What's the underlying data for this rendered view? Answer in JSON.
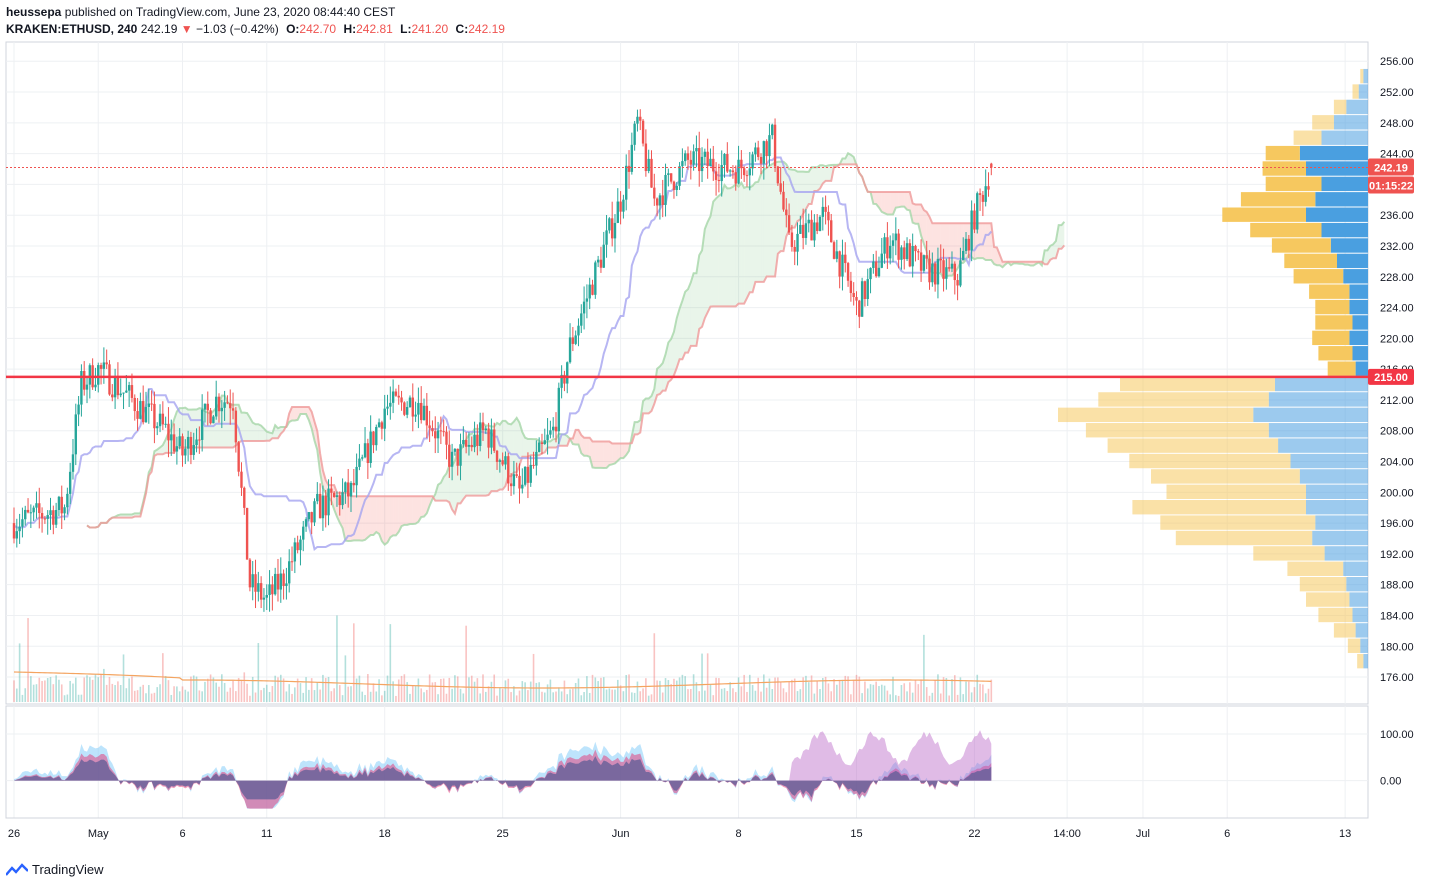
{
  "header": {
    "publisher": "heussepa",
    "published_on": "published on TradingView.com, June 23, 2020 08:44:40 CEST",
    "symbol": "KRAKEN:ETHUSD, 240",
    "last": "242.19",
    "change": "−1.03 (−0.42%)",
    "o_label": "O:",
    "o": "242.70",
    "h_label": "H:",
    "h": "242.81",
    "l_label": "L:",
    "l": "241.20",
    "c_label": "C:",
    "c": "242.19"
  },
  "footer": {
    "brand": "TradingView"
  },
  "colors": {
    "up": "#26a69a",
    "down": "#ef5350",
    "grid": "#eef0f3",
    "baseline": "#26a69a",
    "hline": "#f23645",
    "kijun": "#a5a4f0",
    "cloud_green": "#c8e6c9",
    "cloud_red": "#ffcdd2",
    "vp_blue": "#4a9fe0",
    "vp_yellow": "#f6c85f"
  },
  "chart_data": {
    "type": "candlestick",
    "title": "",
    "price_axis": {
      "ticks": [
        "256.00",
        "252.00",
        "248.00",
        "244.00",
        "240.00",
        "236.00",
        "232.00",
        "228.00",
        "224.00",
        "220.00",
        "216.00",
        "212.00",
        "208.00",
        "204.00",
        "200.00",
        "196.00",
        "192.00",
        "188.00",
        "184.00",
        "180.00",
        "176.00"
      ],
      "ylim": [
        172.5,
        258.5
      ]
    },
    "time_axis": {
      "ticks": [
        "26",
        "May",
        "6",
        "11",
        "18",
        "25",
        "Jun",
        "8",
        "15",
        "22",
        "14:00",
        "Jul",
        "6",
        "13"
      ]
    },
    "last_price_label": "242.19",
    "countdown_label": "01:15:22",
    "horizontal_line": {
      "price": 215.0,
      "label": "215.00"
    },
    "ohlc_summary": {
      "open": 242.7,
      "high": 242.81,
      "low": 241.2,
      "close": 242.19
    },
    "price_path_anchors": [
      {
        "date": "Apr 26",
        "price": 196
      },
      {
        "date": "Apr 29",
        "price": 198
      },
      {
        "date": "Apr 30",
        "price": 214
      },
      {
        "date": "May 1",
        "price": 216
      },
      {
        "date": "May 3",
        "price": 212
      },
      {
        "date": "May 5",
        "price": 208
      },
      {
        "date": "May 6",
        "price": 205
      },
      {
        "date": "May 8",
        "price": 212
      },
      {
        "date": "May 9",
        "price": 212
      },
      {
        "date": "May 10",
        "price": 188
      },
      {
        "date": "May 11",
        "price": 186
      },
      {
        "date": "May 12",
        "price": 189
      },
      {
        "date": "May 14",
        "price": 198
      },
      {
        "date": "May 16",
        "price": 200
      },
      {
        "date": "May 18",
        "price": 211
      },
      {
        "date": "May 20",
        "price": 212
      },
      {
        "date": "May 22",
        "price": 204
      },
      {
        "date": "May 24",
        "price": 208
      },
      {
        "date": "May 26",
        "price": 200
      },
      {
        "date": "May 28",
        "price": 208
      },
      {
        "date": "May 29",
        "price": 219
      },
      {
        "date": "Jun 1",
        "price": 238
      },
      {
        "date": "Jun 2",
        "price": 248
      },
      {
        "date": "Jun 3",
        "price": 238
      },
      {
        "date": "Jun 5",
        "price": 243
      },
      {
        "date": "Jun 8",
        "price": 242
      },
      {
        "date": "Jun 10",
        "price": 246
      },
      {
        "date": "Jun 11",
        "price": 232
      },
      {
        "date": "Jun 13",
        "price": 236
      },
      {
        "date": "Jun 15",
        "price": 224
      },
      {
        "date": "Jun 17",
        "price": 233
      },
      {
        "date": "Jun 19",
        "price": 229
      },
      {
        "date": "Jun 21",
        "price": 228
      },
      {
        "date": "Jun 22",
        "price": 236
      },
      {
        "date": "Jun 23",
        "price": 242.19
      }
    ],
    "volume_profile": [
      {
        "price": 254,
        "up": 2,
        "down": 3
      },
      {
        "price": 252,
        "up": 4,
        "down": 6
      },
      {
        "price": 250,
        "up": 8,
        "down": 14
      },
      {
        "price": 248,
        "up": 14,
        "down": 22
      },
      {
        "price": 246,
        "up": 18,
        "down": 30
      },
      {
        "price": 244,
        "up": 22,
        "down": 44
      },
      {
        "price": 242,
        "up": 28,
        "down": 40
      },
      {
        "price": 240,
        "up": 36,
        "down": 30
      },
      {
        "price": 238,
        "up": 48,
        "down": 34
      },
      {
        "price": 236,
        "up": 54,
        "down": 40
      },
      {
        "price": 234,
        "up": 46,
        "down": 30
      },
      {
        "price": 232,
        "up": 38,
        "down": 24
      },
      {
        "price": 230,
        "up": 34,
        "down": 20
      },
      {
        "price": 228,
        "up": 32,
        "down": 16
      },
      {
        "price": 226,
        "up": 26,
        "down": 12
      },
      {
        "price": 224,
        "up": 22,
        "down": 12
      },
      {
        "price": 222,
        "up": 24,
        "down": 10
      },
      {
        "price": 220,
        "up": 24,
        "down": 12
      },
      {
        "price": 218,
        "up": 22,
        "down": 10
      },
      {
        "price": 216,
        "up": 18,
        "down": 8
      },
      {
        "price": 214,
        "up": 100,
        "down": 60
      },
      {
        "price": 212,
        "up": 110,
        "down": 64
      },
      {
        "price": 210,
        "up": 126,
        "down": 74
      },
      {
        "price": 208,
        "up": 118,
        "down": 64
      },
      {
        "price": 206,
        "up": 110,
        "down": 58
      },
      {
        "price": 204,
        "up": 104,
        "down": 50
      },
      {
        "price": 202,
        "up": 96,
        "down": 44
      },
      {
        "price": 200,
        "up": 90,
        "down": 40
      },
      {
        "price": 198,
        "up": 112,
        "down": 40
      },
      {
        "price": 196,
        "up": 100,
        "down": 34
      },
      {
        "price": 194,
        "up": 88,
        "down": 36
      },
      {
        "price": 192,
        "up": 46,
        "down": 28
      },
      {
        "price": 190,
        "up": 36,
        "down": 16
      },
      {
        "price": 188,
        "up": 30,
        "down": 14
      },
      {
        "price": 186,
        "up": 28,
        "down": 12
      },
      {
        "price": 184,
        "up": 22,
        "down": 10
      },
      {
        "price": 182,
        "up": 14,
        "down": 8
      },
      {
        "price": 180,
        "up": 8,
        "down": 5
      },
      {
        "price": 178,
        "up": 4,
        "down": 3
      }
    ],
    "oscillator": {
      "ticks": [
        "100.00",
        "0.00"
      ],
      "ylim": [
        -80,
        160
      ]
    }
  }
}
